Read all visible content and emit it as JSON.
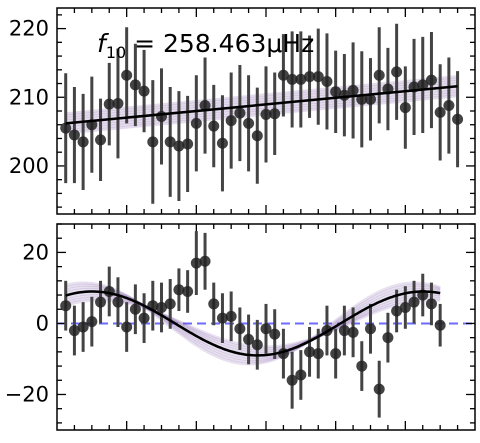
{
  "chart_data": [
    {
      "type": "scatter",
      "annotation": {
        "symbol": "f",
        "subscript": "10",
        "value": " = 258.463μHz"
      },
      "ylim": [
        193,
        223
      ],
      "yticks": [
        200,
        210,
        220
      ],
      "points": [
        [
          1,
          205.5,
          8
        ],
        [
          2,
          204.5,
          7
        ],
        [
          3,
          203.5,
          7
        ],
        [
          4,
          206,
          7
        ],
        [
          5,
          203.8,
          6
        ],
        [
          6,
          209,
          6
        ],
        [
          7,
          209.1,
          8
        ],
        [
          8,
          213.2,
          7
        ],
        [
          9,
          211.8,
          6
        ],
        [
          10,
          210.9,
          6
        ],
        [
          11,
          203.5,
          9
        ],
        [
          12,
          207.2,
          7
        ],
        [
          13,
          203.5,
          8
        ],
        [
          14,
          202.9,
          8
        ],
        [
          15,
          203.2,
          7
        ],
        [
          16,
          206.2,
          7
        ],
        [
          17,
          208.8,
          7
        ],
        [
          18,
          205.8,
          6
        ],
        [
          19,
          203.3,
          7
        ],
        [
          20,
          206.6,
          7
        ],
        [
          21,
          207.7,
          7
        ],
        [
          22,
          206.2,
          7
        ],
        [
          23,
          204.4,
          7
        ],
        [
          24,
          207.5,
          7
        ],
        [
          25,
          207.6,
          6
        ],
        [
          26,
          213.2,
          6
        ],
        [
          27,
          212.6,
          7
        ],
        [
          28,
          212.6,
          7
        ],
        [
          29,
          213.0,
          6
        ],
        [
          30,
          213.0,
          7
        ],
        [
          31,
          212.3,
          7
        ],
        [
          32,
          210.8,
          6
        ],
        [
          33,
          210.3,
          6
        ],
        [
          34,
          211,
          7
        ],
        [
          35,
          209.7,
          7
        ],
        [
          36,
          209.7,
          6
        ],
        [
          37,
          213.2,
          7
        ],
        [
          38,
          211.2,
          6
        ],
        [
          39,
          213.7,
          7
        ],
        [
          40,
          208.5,
          6
        ],
        [
          41,
          211.5,
          7
        ],
        [
          42,
          211.8,
          7
        ],
        [
          43,
          212.5,
          7
        ],
        [
          44,
          207.8,
          7
        ],
        [
          45,
          208.8,
          7
        ],
        [
          46,
          206.8,
          7
        ]
      ],
      "fit": {
        "x0": 1,
        "y0": 206.2,
        "x1": 46,
        "y1": 211.6
      }
    },
    {
      "type": "scatter",
      "ylim": [
        -30,
        28
      ],
      "yticks": [
        -20,
        0,
        20
      ],
      "zero_line": 0,
      "points": [
        [
          1,
          5,
          7
        ],
        [
          2,
          -2,
          7
        ],
        [
          3,
          -1,
          7
        ],
        [
          4,
          0.5,
          7
        ],
        [
          5,
          6,
          6
        ],
        [
          6,
          9,
          7
        ],
        [
          7,
          6,
          7
        ],
        [
          8,
          -1,
          7
        ],
        [
          9,
          4,
          7
        ],
        [
          10,
          1.5,
          7
        ],
        [
          11,
          5,
          7
        ],
        [
          12,
          4.5,
          7
        ],
        [
          13,
          5.5,
          7
        ],
        [
          14,
          9.5,
          6
        ],
        [
          15,
          9,
          6
        ],
        [
          16,
          17,
          9
        ],
        [
          17,
          17.5,
          8
        ],
        [
          18,
          5.5,
          6
        ],
        [
          19,
          1.5,
          7
        ],
        [
          20,
          2,
          7
        ],
        [
          21,
          -1.5,
          6
        ],
        [
          22,
          -4.5,
          7
        ],
        [
          23,
          -6,
          7
        ],
        [
          24,
          -1.5,
          7
        ],
        [
          25,
          -3,
          7
        ],
        [
          26,
          -8.5,
          7
        ],
        [
          27,
          -16,
          8
        ],
        [
          28,
          -14.5,
          7
        ],
        [
          29,
          -8,
          7
        ],
        [
          30,
          -8.5,
          7
        ],
        [
          31,
          -2,
          7
        ],
        [
          32,
          -8.5,
          7
        ],
        [
          33,
          -2,
          7
        ],
        [
          34,
          -2.5,
          7
        ],
        [
          35,
          -12,
          7
        ],
        [
          36,
          -1.5,
          7
        ],
        [
          37,
          -18.5,
          8
        ],
        [
          38,
          -4,
          7
        ],
        [
          39,
          3.5,
          6
        ],
        [
          40,
          4.5,
          6
        ],
        [
          41,
          6,
          6
        ],
        [
          42,
          8,
          6
        ],
        [
          43,
          5.5,
          6
        ],
        [
          44,
          -0.5,
          6
        ]
      ],
      "model": {
        "amplitude": 9,
        "period": 38,
        "phase": 0.9
      }
    }
  ],
  "colors": {
    "points": "#333333",
    "fit": "#000000",
    "band": "#6a3d9a",
    "zero_line": "#6b6bff"
  }
}
